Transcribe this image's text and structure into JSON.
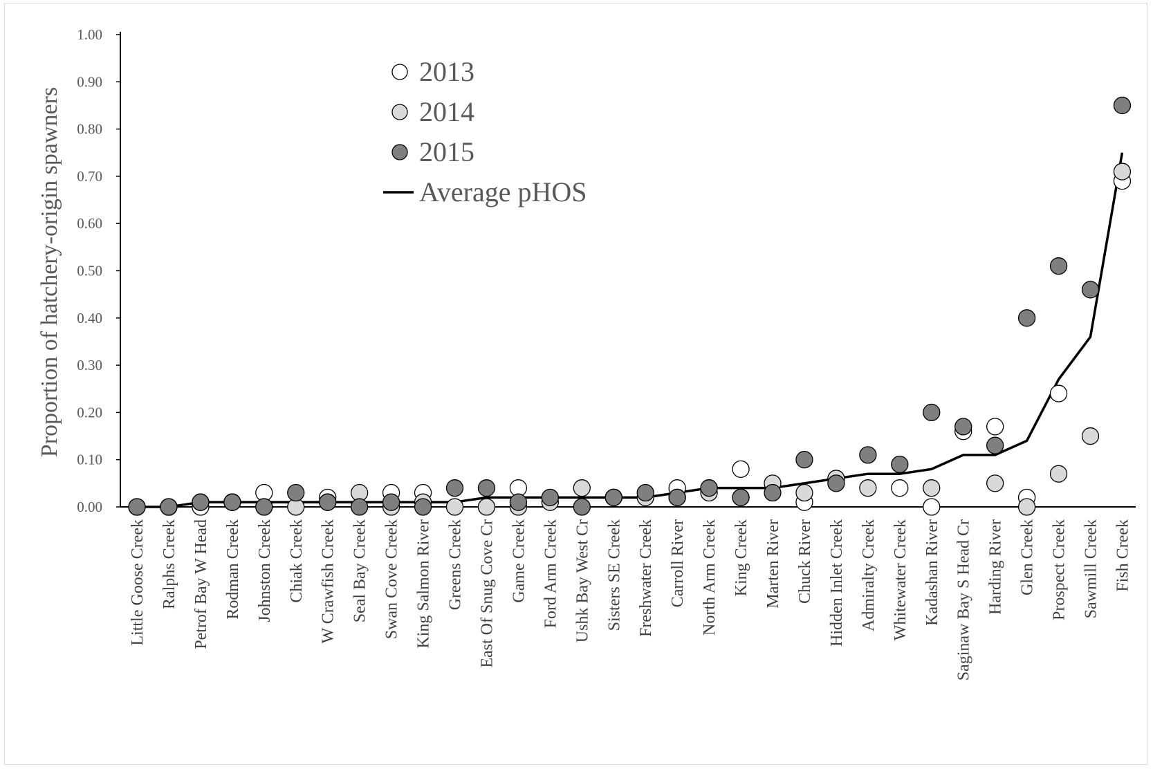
{
  "chart_data": {
    "type": "scatter",
    "title": "",
    "xlabel": "",
    "ylabel": "Proportion of hatchery-origin spawners",
    "ylim": [
      0,
      1
    ],
    "yticks": [
      "0.00",
      "0.10",
      "0.20",
      "0.30",
      "0.40",
      "0.50",
      "0.60",
      "0.70",
      "0.80",
      "0.90",
      "1.00"
    ],
    "grid": false,
    "legend_position": "top-left",
    "categories": [
      "Little Goose Creek",
      "Ralphs Creek",
      "Petrof Bay W Head",
      "Rodman Creek",
      "Johnston Creek",
      "Chiak Creek",
      "W Crawfish Creek",
      "Seal Bay Creek",
      "Swan Cove Creek",
      "King Salmon River",
      "Greens Creek",
      "East Of Snug Cove Cr",
      "Game Creek",
      "Ford Arm Creek",
      "Ushk Bay West Cr",
      "Sisters SE Creek",
      "Freshwater Creek",
      "Carroll River",
      "North Arm Creek",
      "King Creek",
      "Marten River",
      "Chuck River",
      "Hidden Inlet Creek",
      "Admiralty Creek",
      "Whitewater Creek",
      "Kadashan River",
      "Saginaw Bay S Head Cr",
      "Harding River",
      "Glen Creek",
      "Prospect Creek",
      "Sawmill Creek",
      "Fish Creek"
    ],
    "series": [
      {
        "name": "2013",
        "kind": "points",
        "color": "#ffffff",
        "values": [
          0.0,
          0.0,
          0.0,
          0.01,
          0.03,
          null,
          0.02,
          null,
          0.03,
          0.03,
          null,
          null,
          0.04,
          null,
          null,
          0.02,
          null,
          0.04,
          0.04,
          0.08,
          null,
          0.01,
          0.06,
          null,
          0.04,
          0.0,
          0.16,
          0.17,
          0.02,
          0.24,
          null,
          0.69
        ]
      },
      {
        "name": "2014",
        "kind": "points",
        "color": "#d9d9d9",
        "values": [
          0.0,
          0.0,
          0.01,
          0.01,
          0.0,
          0.0,
          0.01,
          0.03,
          0.0,
          0.01,
          0.0,
          0.0,
          0.0,
          0.01,
          0.04,
          0.02,
          0.02,
          0.02,
          0.03,
          0.02,
          0.05,
          0.03,
          0.06,
          0.04,
          null,
          0.04,
          null,
          0.05,
          0.0,
          0.07,
          0.15,
          0.71
        ]
      },
      {
        "name": "2015",
        "kind": "points",
        "color": "#7f7f7f",
        "values": [
          0.0,
          0.0,
          0.01,
          0.01,
          0.0,
          0.03,
          0.01,
          0.0,
          0.01,
          0.0,
          0.04,
          0.04,
          0.01,
          0.02,
          0.0,
          0.02,
          0.03,
          0.02,
          0.04,
          0.02,
          0.03,
          0.1,
          0.05,
          0.11,
          0.09,
          0.2,
          0.17,
          0.13,
          0.4,
          0.51,
          0.46,
          0.85
        ]
      },
      {
        "name": "Average pHOS",
        "kind": "line",
        "color": "#000000",
        "values": [
          0.0,
          0.0,
          0.01,
          0.01,
          0.01,
          0.01,
          0.01,
          0.01,
          0.01,
          0.01,
          0.01,
          0.02,
          0.02,
          0.02,
          0.02,
          0.02,
          0.02,
          0.03,
          0.04,
          0.04,
          0.04,
          0.05,
          0.06,
          0.07,
          0.07,
          0.08,
          0.11,
          0.11,
          0.14,
          0.27,
          0.36,
          0.75
        ]
      }
    ]
  }
}
